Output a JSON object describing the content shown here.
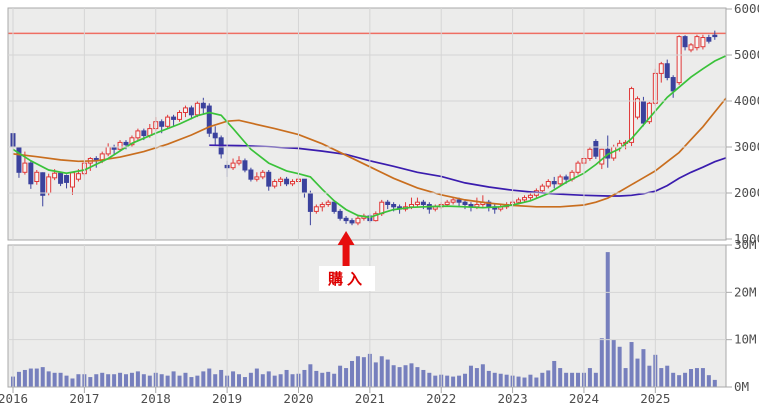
{
  "chart_data": {
    "type": "candlestick+volume",
    "title": "",
    "interval": "monthly",
    "start_month": "2016-01",
    "x_axis": {
      "years": [
        "2016",
        "2017",
        "2018",
        "2019",
        "2020",
        "2021",
        "2022",
        "2023",
        "2024",
        "2025"
      ]
    },
    "price_axis": {
      "min": 1000,
      "max": 6000,
      "ticks": [
        "1000",
        "2000",
        "3000",
        "4000",
        "5000",
        "6000"
      ]
    },
    "volume_axis": {
      "min": 0,
      "max": 30,
      "unit": "M",
      "ticks": [
        "0M",
        "10M",
        "20M",
        "30M"
      ]
    },
    "alert_line_value": 5470,
    "annotation": {
      "label": "購入",
      "month_index": 56
    },
    "legend": "none",
    "grid": "on",
    "colors": {
      "panel_bg": "#ececeb",
      "grid": "#d5d5d5",
      "border": "#a9a9a9",
      "up_candle": "#e03838",
      "up_candle_fill": "#f7f5f3",
      "down_candle": "#3b429d",
      "volume_bar": "#767fbd",
      "ma_short": "#3ac23a",
      "ma_mid": "#c96e1e",
      "ma_long": "#3a1cae",
      "alert_line": "#ef6e62",
      "arrow": "#e60e0e",
      "annotation_text": "#dd0000",
      "axis_text": "#4d4d4d"
    },
    "candles_ohlcv": [
      [
        3290,
        3380,
        2930,
        3000,
        2.2
      ],
      [
        2980,
        3000,
        2330,
        2450,
        3.2
      ],
      [
        2450,
        2900,
        2400,
        2650,
        3.6
      ],
      [
        2650,
        2700,
        2090,
        2200,
        3.9
      ],
      [
        2250,
        2500,
        2180,
        2450,
        3.9
      ],
      [
        2440,
        2450,
        1710,
        1950,
        4.2
      ],
      [
        2000,
        2420,
        1950,
        2350,
        3.3
      ],
      [
        2330,
        2520,
        2280,
        2430,
        3.0
      ],
      [
        2430,
        2460,
        2150,
        2210,
        3.0
      ],
      [
        2380,
        2400,
        2100,
        2230,
        2.4
      ],
      [
        2130,
        2450,
        1960,
        2440,
        1.8
      ],
      [
        2300,
        2520,
        2250,
        2420,
        2.7
      ],
      [
        2420,
        2700,
        2380,
        2650,
        2.7
      ],
      [
        2650,
        2780,
        2480,
        2750,
        2.1
      ],
      [
        2750,
        2800,
        2550,
        2700,
        2.7
      ],
      [
        2700,
        2900,
        2650,
        2850,
        3.0
      ],
      [
        2850,
        3080,
        2800,
        3000,
        2.7
      ],
      [
        3000,
        3050,
        2850,
        2950,
        2.7
      ],
      [
        2950,
        3150,
        2900,
        3100,
        3.0
      ],
      [
        3100,
        3150,
        2950,
        3050,
        2.7
      ],
      [
        3050,
        3250,
        3000,
        3200,
        3.0
      ],
      [
        3200,
        3400,
        3150,
        3350,
        3.3
      ],
      [
        3350,
        3400,
        3150,
        3250,
        2.7
      ],
      [
        3250,
        3500,
        3200,
        3400,
        2.4
      ],
      [
        3400,
        3650,
        3350,
        3550,
        3.0
      ],
      [
        3550,
        3600,
        3300,
        3450,
        2.7
      ],
      [
        3450,
        3700,
        3400,
        3650,
        2.4
      ],
      [
        3650,
        3700,
        3450,
        3600,
        3.3
      ],
      [
        3600,
        3800,
        3550,
        3750,
        2.4
      ],
      [
        3750,
        3900,
        3650,
        3850,
        3.0
      ],
      [
        3850,
        3900,
        3600,
        3700,
        2.1
      ],
      [
        3700,
        4000,
        3650,
        3950,
        2.4
      ],
      [
        3950,
        4070,
        3700,
        3850,
        3.3
      ],
      [
        3890,
        3950,
        3220,
        3300,
        3.9
      ],
      [
        3300,
        3450,
        3050,
        3200,
        2.7
      ],
      [
        3200,
        3250,
        2750,
        2850,
        3.6
      ],
      [
        2600,
        2700,
        2350,
        2550,
        2.4
      ],
      [
        2550,
        2750,
        2500,
        2650,
        3.3
      ],
      [
        2650,
        2800,
        2600,
        2700,
        2.7
      ],
      [
        2700,
        2750,
        2450,
        2500,
        2.1
      ],
      [
        2500,
        2550,
        2250,
        2300,
        3.0
      ],
      [
        2300,
        2450,
        2250,
        2350,
        3.9
      ],
      [
        2350,
        2500,
        2300,
        2450,
        2.7
      ],
      [
        2450,
        2500,
        2050,
        2150,
        3.3
      ],
      [
        2150,
        2300,
        2100,
        2250,
        2.4
      ],
      [
        2250,
        2350,
        2150,
        2300,
        2.7
      ],
      [
        2300,
        2350,
        2150,
        2200,
        3.6
      ],
      [
        2200,
        2300,
        2150,
        2250,
        2.7
      ],
      [
        2250,
        2350,
        2200,
        2300,
        2.8
      ],
      [
        2300,
        2300,
        1900,
        2000,
        3.6
      ],
      [
        2000,
        2050,
        1300,
        1600,
        4.8
      ],
      [
        1600,
        1750,
        1550,
        1700,
        3.4
      ],
      [
        1700,
        1800,
        1600,
        1750,
        3.0
      ],
      [
        1750,
        1850,
        1700,
        1800,
        3.2
      ],
      [
        1800,
        1800,
        1550,
        1600,
        2.8
      ],
      [
        1600,
        1650,
        1400,
        1450,
        4.5
      ],
      [
        1450,
        1500,
        1330,
        1400,
        4.0
      ],
      [
        1400,
        1450,
        1300,
        1350,
        5.5
      ],
      [
        1350,
        1500,
        1300,
        1450,
        6.5
      ],
      [
        1450,
        1550,
        1400,
        1500,
        6.3
      ],
      [
        1500,
        1550,
        1350,
        1400,
        7.0
      ],
      [
        1400,
        1600,
        1380,
        1550,
        5.2
      ],
      [
        1550,
        1850,
        1500,
        1800,
        6.5
      ],
      [
        1800,
        1850,
        1650,
        1750,
        5.8
      ],
      [
        1750,
        1800,
        1600,
        1700,
        4.6
      ],
      [
        1700,
        1750,
        1550,
        1650,
        4.2
      ],
      [
        1650,
        1800,
        1600,
        1700,
        4.6
      ],
      [
        1700,
        1900,
        1650,
        1750,
        5.0
      ],
      [
        1750,
        1900,
        1700,
        1800,
        4.2
      ],
      [
        1800,
        1850,
        1650,
        1750,
        3.6
      ],
      [
        1750,
        1800,
        1550,
        1650,
        3.0
      ],
      [
        1650,
        1750,
        1600,
        1700,
        2.4
      ],
      [
        1700,
        1800,
        1650,
        1750,
        2.6
      ],
      [
        1750,
        1850,
        1700,
        1800,
        2.4
      ],
      [
        1800,
        1900,
        1750,
        1850,
        2.2
      ],
      [
        1850,
        1900,
        1700,
        1800,
        2.4
      ],
      [
        1800,
        1850,
        1650,
        1750,
        2.8
      ],
      [
        1750,
        1800,
        1600,
        1700,
        4.5
      ],
      [
        1700,
        1900,
        1650,
        1750,
        4.0
      ],
      [
        1750,
        1950,
        1700,
        1800,
        4.8
      ],
      [
        1800,
        1850,
        1600,
        1700,
        3.4
      ],
      [
        1700,
        1750,
        1550,
        1650,
        3.0
      ],
      [
        1650,
        1750,
        1600,
        1700,
        2.8
      ],
      [
        1700,
        1800,
        1650,
        1750,
        2.6
      ],
      [
        1750,
        1850,
        1700,
        1800,
        2.4
      ],
      [
        1800,
        1900,
        1750,
        1850,
        2.2
      ],
      [
        1850,
        1950,
        1800,
        1900,
        2.0
      ],
      [
        1900,
        2000,
        1850,
        1950,
        2.6
      ],
      [
        1950,
        2100,
        1900,
        2050,
        2.0
      ],
      [
        2050,
        2200,
        2000,
        2150,
        3.0
      ],
      [
        2150,
        2300,
        2100,
        2250,
        3.5
      ],
      [
        2250,
        2350,
        2100,
        2200,
        5.5
      ],
      [
        2200,
        2400,
        2150,
        2350,
        4.0
      ],
      [
        2350,
        2400,
        2200,
        2300,
        3.0
      ],
      [
        2300,
        2500,
        2250,
        2450,
        3.0
      ],
      [
        2450,
        2700,
        2400,
        2650,
        3.0
      ],
      [
        2650,
        2800,
        2600,
        2750,
        3.0
      ],
      [
        2750,
        3000,
        2700,
        2950,
        4.0
      ],
      [
        3120,
        3170,
        2740,
        2800,
        3.0
      ],
      [
        2630,
        2960,
        2520,
        2950,
        10.3
      ],
      [
        2950,
        3250,
        2550,
        2760,
        28.5
      ],
      [
        2760,
        3050,
        2700,
        3000,
        10.0
      ],
      [
        3000,
        3150,
        2900,
        3080,
        8.5
      ],
      [
        3080,
        3150,
        2950,
        3100,
        4.0
      ],
      [
        3100,
        4310,
        3020,
        4270,
        9.5
      ],
      [
        3650,
        4100,
        3600,
        4050,
        6.0
      ],
      [
        3990,
        4090,
        3450,
        3520,
        8.0
      ],
      [
        3550,
        3980,
        3500,
        3950,
        4.5
      ],
      [
        3950,
        4700,
        3900,
        4600,
        6.8
      ],
      [
        4600,
        4850,
        4400,
        4810,
        4.0
      ],
      [
        4810,
        4900,
        4450,
        4510,
        4.5
      ],
      [
        4510,
        4560,
        4070,
        4220,
        3.0
      ],
      [
        4400,
        5430,
        4350,
        5400,
        2.5
      ],
      [
        5400,
        5430,
        5100,
        5180,
        3.0
      ],
      [
        5110,
        5260,
        5060,
        5220,
        3.8
      ],
      [
        5160,
        5440,
        5100,
        5400,
        4.0
      ],
      [
        5180,
        5440,
        5120,
        5380,
        4.0
      ],
      [
        5380,
        5440,
        5250,
        5300,
        2.5
      ],
      [
        5430,
        5530,
        5330,
        5400,
        1.5
      ]
    ],
    "moving_averages": {
      "short_ma_points": [
        [
          0,
          2950
        ],
        [
          3,
          2700
        ],
        [
          6,
          2500
        ],
        [
          9,
          2430
        ],
        [
          12,
          2500
        ],
        [
          16,
          2750
        ],
        [
          20,
          3080
        ],
        [
          24,
          3300
        ],
        [
          28,
          3500
        ],
        [
          31,
          3680
        ],
        [
          33,
          3750
        ],
        [
          35,
          3690
        ],
        [
          37,
          3400
        ],
        [
          40,
          2950
        ],
        [
          43,
          2650
        ],
        [
          46,
          2480
        ],
        [
          48,
          2420
        ],
        [
          50,
          2350
        ],
        [
          52,
          2080
        ],
        [
          54,
          1830
        ],
        [
          56,
          1640
        ],
        [
          58,
          1510
        ],
        [
          60,
          1470
        ],
        [
          62,
          1560
        ],
        [
          64,
          1640
        ],
        [
          67,
          1690
        ],
        [
          70,
          1705
        ],
        [
          73,
          1715
        ],
        [
          76,
          1700
        ],
        [
          79,
          1680
        ],
        [
          82,
          1700
        ],
        [
          84,
          1740
        ],
        [
          87,
          1830
        ],
        [
          90,
          1990
        ],
        [
          93,
          2230
        ],
        [
          96,
          2430
        ],
        [
          98,
          2620
        ],
        [
          100,
          2840
        ],
        [
          102,
          2960
        ],
        [
          104,
          3180
        ],
        [
          106,
          3480
        ],
        [
          108,
          3780
        ],
        [
          110,
          4080
        ],
        [
          112,
          4300
        ],
        [
          114,
          4520
        ],
        [
          116,
          4700
        ],
        [
          118,
          4870
        ],
        [
          120,
          4990
        ]
      ],
      "mid_ma_points": [
        [
          0,
          2850
        ],
        [
          4,
          2790
        ],
        [
          8,
          2720
        ],
        [
          11,
          2690
        ],
        [
          14,
          2700
        ],
        [
          18,
          2780
        ],
        [
          22,
          2900
        ],
        [
          26,
          3060
        ],
        [
          30,
          3260
        ],
        [
          33,
          3440
        ],
        [
          36,
          3560
        ],
        [
          38,
          3580
        ],
        [
          40,
          3520
        ],
        [
          44,
          3400
        ],
        [
          48,
          3270
        ],
        [
          52,
          3070
        ],
        [
          56,
          2820
        ],
        [
          60,
          2570
        ],
        [
          64,
          2320
        ],
        [
          68,
          2110
        ],
        [
          72,
          1960
        ],
        [
          76,
          1850
        ],
        [
          80,
          1780
        ],
        [
          84,
          1730
        ],
        [
          88,
          1700
        ],
        [
          92,
          1700
        ],
        [
          96,
          1740
        ],
        [
          98,
          1800
        ],
        [
          100,
          1890
        ],
        [
          102,
          2030
        ],
        [
          104,
          2180
        ],
        [
          106,
          2330
        ],
        [
          108,
          2480
        ],
        [
          110,
          2680
        ],
        [
          112,
          2880
        ],
        [
          114,
          3160
        ],
        [
          116,
          3440
        ],
        [
          118,
          3760
        ],
        [
          120,
          4080
        ]
      ],
      "long_ma_points": [
        [
          33,
          3040
        ],
        [
          38,
          3030
        ],
        [
          44,
          3000
        ],
        [
          48,
          2970
        ],
        [
          52,
          2910
        ],
        [
          56,
          2840
        ],
        [
          60,
          2700
        ],
        [
          64,
          2580
        ],
        [
          68,
          2450
        ],
        [
          72,
          2360
        ],
        [
          76,
          2220
        ],
        [
          80,
          2130
        ],
        [
          84,
          2060
        ],
        [
          88,
          2010
        ],
        [
          92,
          1975
        ],
        [
          96,
          1950
        ],
        [
          100,
          1935
        ],
        [
          102,
          1935
        ],
        [
          104,
          1950
        ],
        [
          106,
          1985
        ],
        [
          108,
          2040
        ],
        [
          110,
          2160
        ],
        [
          112,
          2320
        ],
        [
          114,
          2450
        ],
        [
          116,
          2560
        ],
        [
          118,
          2680
        ],
        [
          120,
          2770
        ]
      ]
    }
  }
}
